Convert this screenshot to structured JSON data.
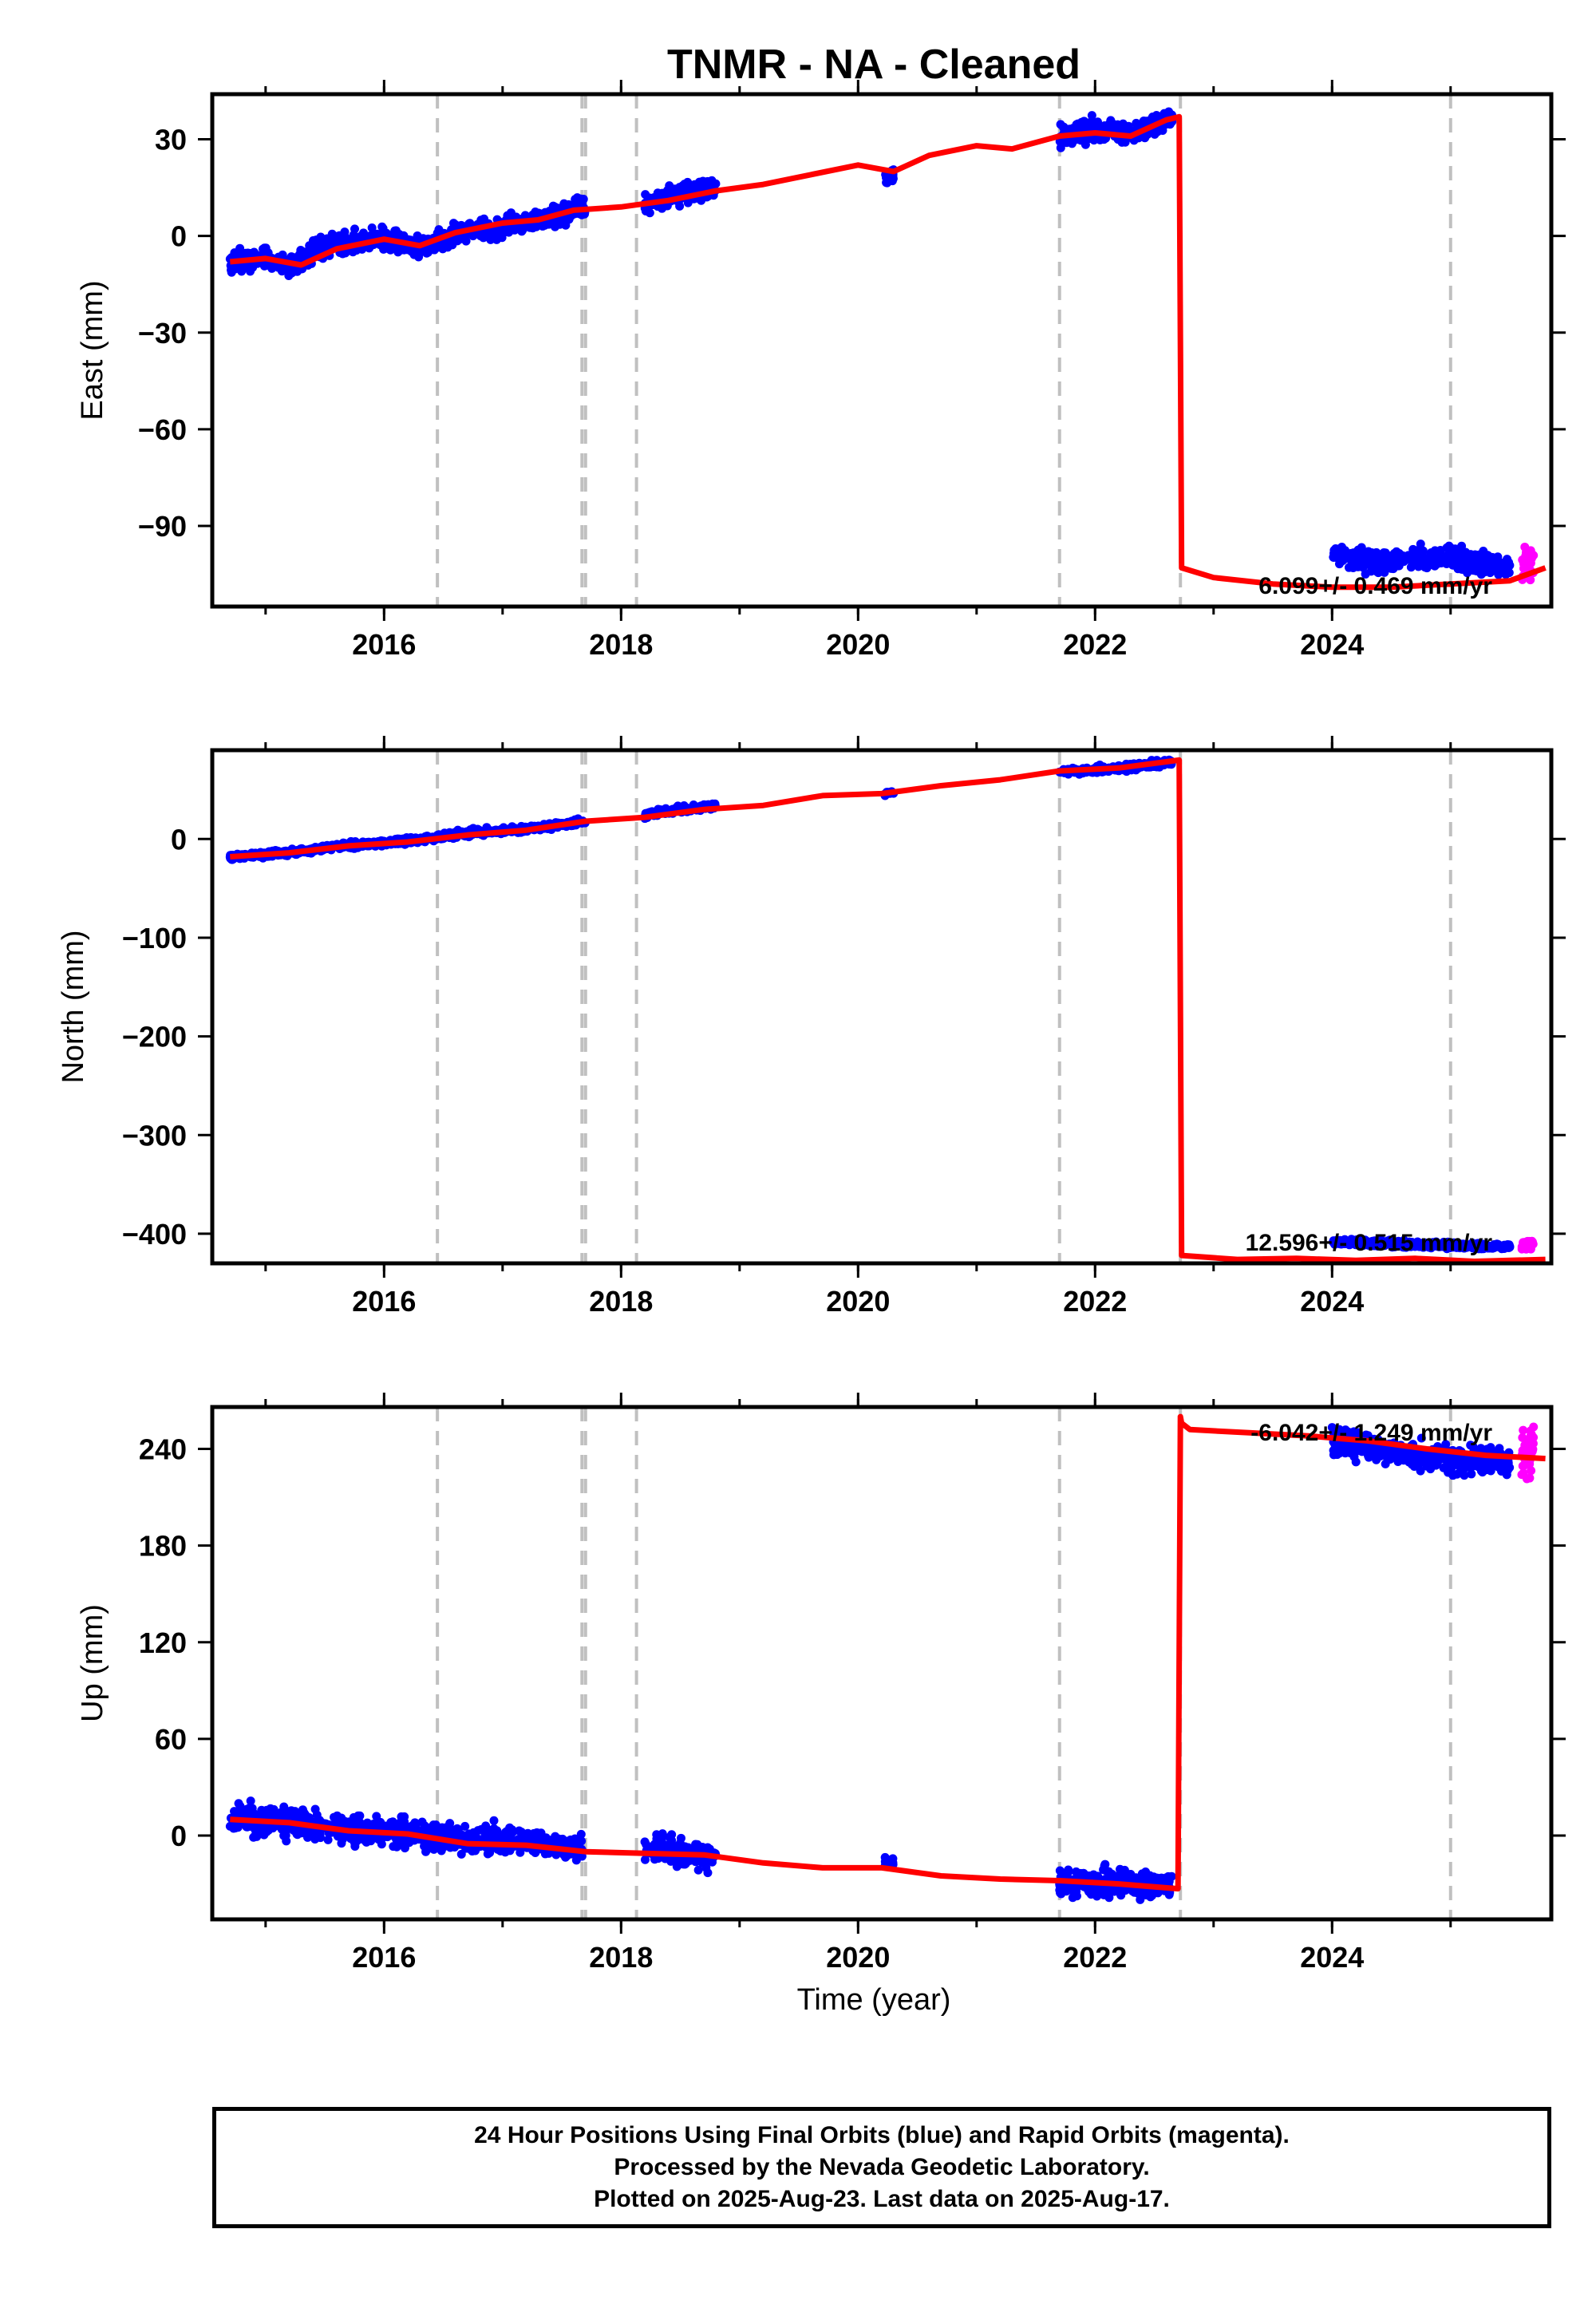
{
  "chart_data": {
    "type": "scatter",
    "title": "TNMR  - NA - Cleaned",
    "xlabel": "Time (year)",
    "xlim": [
      2014.55,
      2025.85
    ],
    "xticks": [
      2016,
      2018,
      2020,
      2022,
      2024
    ],
    "xtick_labels": [
      "2016",
      "2018",
      "2020",
      "2022",
      "2024"
    ],
    "vlines": [
      2016.45,
      2017.67,
      2017.7,
      2018.13,
      2021.7,
      2022.72,
      2025.0
    ],
    "final_color": "#0000ff",
    "rapid_color": "#ff00ff",
    "model_color": "#ff0000",
    "gridline_color": "#c0c0c0",
    "panels": [
      {
        "name": "east",
        "ylabel": "East (mm)",
        "ylim": [
          -115,
          44
        ],
        "yticks": [
          30,
          0,
          -30,
          -60,
          -90
        ],
        "ytick_labels": [
          "30",
          "0",
          "−30",
          "−60",
          "−90"
        ],
        "rate_label": "6.099+/- 0.469 mm/yr",
        "rate_pos": "bottom-right",
        "segments": [
          {
            "x": [
              2014.7,
              2015.0,
              2015.2,
              2015.5,
              2016.0,
              2016.3,
              2016.6,
              2017.0,
              2017.4,
              2017.7
            ],
            "y": [
              -8,
              -7,
              -10,
              -3,
              -1,
              -4,
              1,
              3,
              6,
              9
            ],
            "scatter": 3
          },
          {
            "x": [
              2018.2,
              2018.5,
              2018.8
            ],
            "y": [
              10,
              13,
              15
            ],
            "scatter": 3
          },
          {
            "x": [
              2020.22,
              2020.3
            ],
            "y": [
              18,
              19
            ],
            "scatter": 2
          },
          {
            "x": [
              2021.7,
              2022.0,
              2022.3,
              2022.65
            ],
            "y": [
              31,
              33,
              32,
              37
            ],
            "scatter": 3
          },
          {
            "x": [
              2024.0,
              2024.3,
              2024.6,
              2025.0,
              2025.5
            ],
            "y": [
              -99,
              -101,
              -100,
              -100,
              -103
            ],
            "scatter": 3
          }
        ],
        "rapid": {
          "x": [
            2025.6,
            2025.7
          ],
          "y": [
            -104,
            -102
          ],
          "scatter": 6
        },
        "model": {
          "x": [
            2014.7,
            2015.0,
            2015.3,
            2015.6,
            2016.0,
            2016.3,
            2016.6,
            2017.0,
            2017.3,
            2017.6,
            2018.0,
            2018.4,
            2018.8,
            2019.2,
            2019.6,
            2020.0,
            2020.3,
            2020.6,
            2021.0,
            2021.3,
            2021.7,
            2022.0,
            2022.3,
            2022.6,
            2022.71,
            2022.73,
            2023.0,
            2023.5,
            2024.0,
            2024.5,
            2025.0,
            2025.5,
            2025.8
          ],
          "y": [
            -8,
            -7,
            -9,
            -4,
            -1,
            -3,
            1,
            4,
            5,
            8,
            9,
            11,
            14,
            16,
            19,
            22,
            20,
            25,
            28,
            27,
            31,
            32,
            31,
            36,
            37,
            -103,
            -106,
            -108,
            -109,
            -109,
            -108,
            -107,
            -103
          ]
        }
      },
      {
        "name": "north",
        "ylabel": "North (mm)",
        "ylim": [
          -430,
          90
        ],
        "yticks": [
          0,
          -100,
          -200,
          -300,
          -400
        ],
        "ytick_labels": [
          "0",
          "−100",
          "−200",
          "−300",
          "−400"
        ],
        "rate_label": "12.596+/- 0.515 mm/yr",
        "rate_pos": "bottom-right",
        "segments": [
          {
            "x": [
              2014.7,
              2015.2,
              2015.7,
              2016.2,
              2016.7,
              2017.2,
              2017.7
            ],
            "y": [
              -18,
              -14,
              -6,
              -2,
              6,
              10,
              18
            ],
            "scatter": 3
          },
          {
            "x": [
              2018.2,
              2018.5,
              2018.8
            ],
            "y": [
              24,
              30,
              34
            ],
            "scatter": 3
          },
          {
            "x": [
              2020.22,
              2020.3
            ],
            "y": [
              46,
              47
            ],
            "scatter": 2
          },
          {
            "x": [
              2021.7,
              2022.0,
              2022.3,
              2022.65
            ],
            "y": [
              68,
              70,
              73,
              78
            ],
            "scatter": 3
          },
          {
            "x": [
              2024.0,
              2024.5,
              2025.0,
              2025.5
            ],
            "y": [
              -408,
              -410,
              -412,
              -413
            ],
            "scatter": 3
          }
        ],
        "rapid": {
          "x": [
            2025.6,
            2025.7
          ],
          "y": [
            -412,
            -410
          ],
          "scatter": 5
        },
        "model": {
          "x": [
            2014.7,
            2015.2,
            2015.7,
            2016.2,
            2016.7,
            2017.2,
            2017.7,
            2018.2,
            2018.7,
            2019.2,
            2019.7,
            2020.2,
            2020.7,
            2021.2,
            2021.7,
            2022.2,
            2022.71,
            2022.73,
            2023.2,
            2023.7,
            2024.2,
            2024.7,
            2025.2,
            2025.8
          ],
          "y": [
            -18,
            -14,
            -7,
            -3,
            4,
            9,
            18,
            22,
            30,
            34,
            44,
            46,
            54,
            60,
            69,
            72,
            80,
            -422,
            -426,
            -425,
            -427,
            -425,
            -428,
            -426
          ]
        }
      },
      {
        "name": "up",
        "ylabel": "Up (mm)",
        "ylim": [
          -52,
          266
        ],
        "yticks": [
          240,
          180,
          120,
          60,
          0
        ],
        "ytick_labels": [
          "240",
          "180",
          "120",
          "60",
          "0"
        ],
        "rate_label": "-6.042+/- 1.249 mm/yr",
        "rate_pos": "top-right",
        "segments": [
          {
            "x": [
              2014.7,
              2015.2,
              2015.7,
              2016.2,
              2016.7,
              2017.2,
              2017.7
            ],
            "y": [
              10,
              8,
              4,
              2,
              -3,
              -4,
              -9
            ],
            "scatter": 8
          },
          {
            "x": [
              2018.2,
              2018.5,
              2018.8
            ],
            "y": [
              -8,
              -10,
              -14
            ],
            "scatter": 8
          },
          {
            "x": [
              2020.22,
              2020.3
            ],
            "y": [
              -15,
              -17
            ],
            "scatter": 3
          },
          {
            "x": [
              2021.7,
              2022.0,
              2022.3,
              2022.65
            ],
            "y": [
              -28,
              -30,
              -29,
              -32
            ],
            "scatter": 8
          },
          {
            "x": [
              2024.0,
              2024.5,
              2025.0,
              2025.5
            ],
            "y": [
              246,
              238,
              233,
              232
            ],
            "scatter": 8
          }
        ],
        "rapid": {
          "x": [
            2025.6,
            2025.7
          ],
          "y": [
            236,
            238
          ],
          "scatter": 14
        },
        "model": {
          "x": [
            2014.7,
            2015.2,
            2015.7,
            2016.2,
            2016.7,
            2017.2,
            2017.7,
            2018.2,
            2018.7,
            2019.2,
            2019.7,
            2020.2,
            2020.7,
            2021.2,
            2021.7,
            2022.2,
            2022.7,
            2022.72,
            2022.73,
            2022.8,
            2023.3,
            2023.8,
            2024.3,
            2024.8,
            2025.3,
            2025.8
          ],
          "y": [
            10,
            8,
            3,
            1,
            -5,
            -6,
            -10,
            -11,
            -12,
            -17,
            -20,
            -20,
            -25,
            -27,
            -28,
            -30,
            -33,
            260,
            256,
            252,
            250,
            248,
            245,
            240,
            236,
            234
          ]
        }
      }
    ],
    "legend": [
      "24 Hour Positions Using Final Orbits (blue) and Rapid Orbits (magenta).",
      "Processed by the Nevada Geodetic Laboratory.",
      "Plotted on 2025-Aug-23. Last data on 2025-Aug-17."
    ]
  }
}
